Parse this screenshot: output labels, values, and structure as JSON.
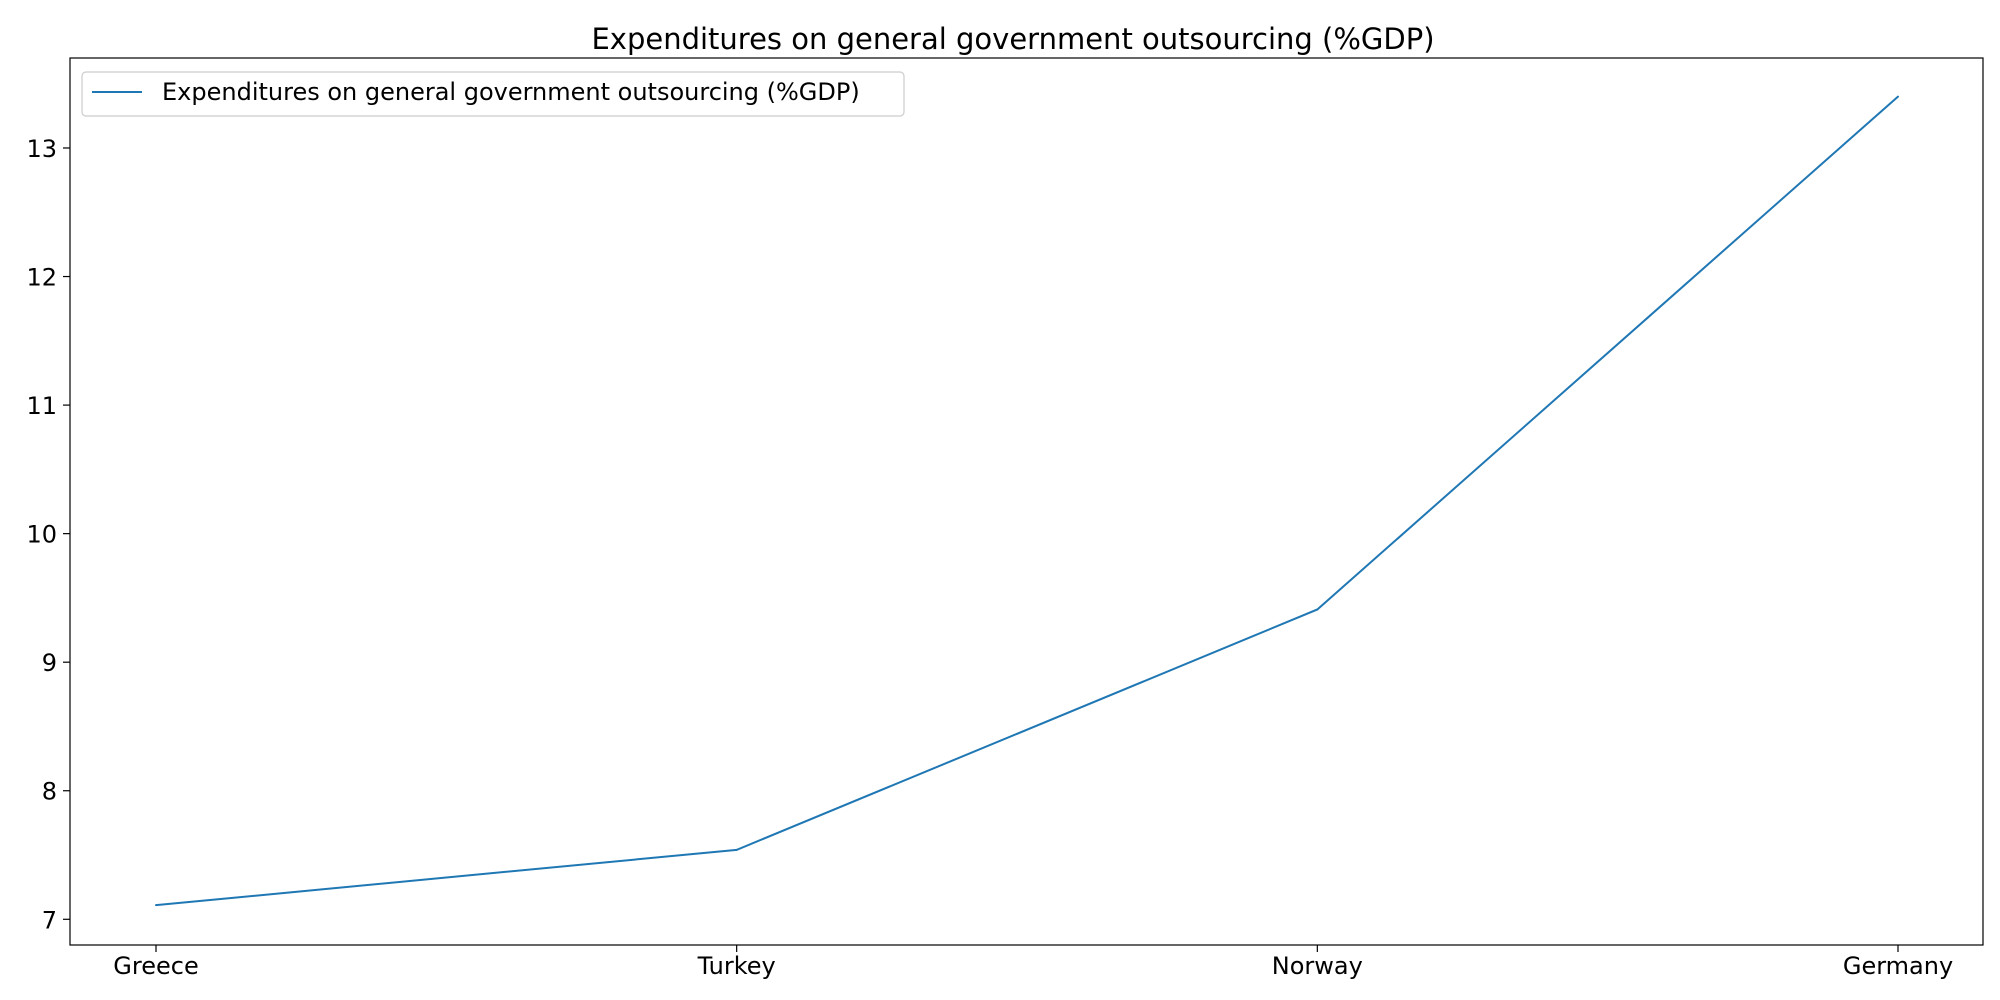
{
  "chart_data": {
    "type": "line",
    "title": "Expenditures on general government outsourcing (%GDP)",
    "xlabel": "",
    "ylabel": "",
    "categories": [
      "Greece",
      "Turkey",
      "Norway",
      "Germany"
    ],
    "series": [
      {
        "name": "Expenditures on general government outsourcing (%GDP)",
        "values": [
          7.11,
          7.54,
          9.41,
          13.4
        ],
        "color": "#1f77b4"
      }
    ],
    "ylim": [
      6.8,
      13.7
    ],
    "yticks": [
      7,
      8,
      9,
      10,
      11,
      12,
      13
    ],
    "grid": false,
    "legend_position": "top-left"
  }
}
